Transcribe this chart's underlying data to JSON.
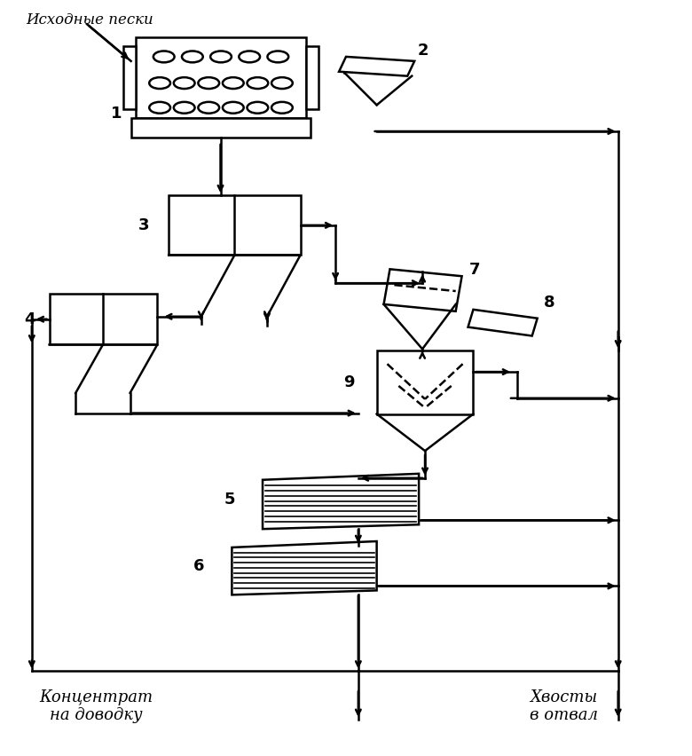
{
  "bg_color": "#ffffff",
  "line_color": "#000000",
  "label_ishodnye": "Исходные пески",
  "label_koncentrat": "Концентрат\nна доводку",
  "label_khvosty": "Хвосты\nв отвал",
  "figsize": [
    7.8,
    8.52
  ],
  "dpi": 100
}
